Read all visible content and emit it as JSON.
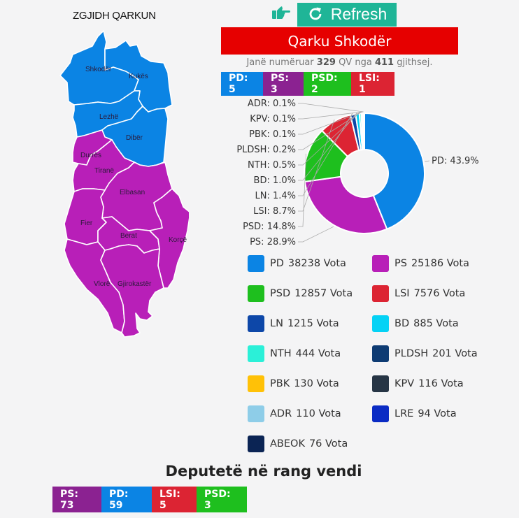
{
  "map": {
    "title": "ZGJIDH QARKUN",
    "regions": [
      {
        "name": "Shkodër",
        "winner": "PD"
      },
      {
        "name": "Kukës",
        "winner": "PD"
      },
      {
        "name": "Lezhë",
        "winner": "PD"
      },
      {
        "name": "Dibër",
        "winner": "PD"
      },
      {
        "name": "Durrës",
        "winner": "PS"
      },
      {
        "name": "Tiranë",
        "winner": "PS"
      },
      {
        "name": "Elbasan",
        "winner": "PS"
      },
      {
        "name": "Fier",
        "winner": "PS"
      },
      {
        "name": "Berat",
        "winner": "PS"
      },
      {
        "name": "Korçë",
        "winner": "PS"
      },
      {
        "name": "Vlorë",
        "winner": "PS"
      },
      {
        "name": "Gjirokastër",
        "winner": "PS"
      }
    ],
    "colors": {
      "PD": "#0b84e4",
      "PS": "#b81fb8"
    }
  },
  "toolbar": {
    "pointer_icon": "hand-pointing-right-icon",
    "refresh_icon": "refresh-icon",
    "refresh_label": "Refresh"
  },
  "region": {
    "title": "Qarku Shkodër",
    "count_prefix": "Janë numëruar",
    "counted": "329",
    "count_mid": "QV nga",
    "total": "411",
    "count_suffix": "gjithsej."
  },
  "region_seats": [
    {
      "label": "PD: 5",
      "color": "#0b84e4"
    },
    {
      "label": "PS: 3",
      "color": "#8b2291"
    },
    {
      "label": "PSD: 2",
      "color": "#1ebf1e"
    },
    {
      "label": "LSI: 1",
      "color": "#dc2433"
    }
  ],
  "chart_data": {
    "type": "pie",
    "subtype": "donut",
    "title": "Qarku Shkodër",
    "categories": [
      "PD",
      "PS",
      "PSD",
      "LSI",
      "LN",
      "BD",
      "NTH",
      "PLDSH",
      "PBK",
      "KPV",
      "ADR",
      "LRE",
      "ABEOK"
    ],
    "values": [
      38238,
      25186,
      12857,
      7576,
      1215,
      885,
      444,
      201,
      130,
      116,
      110,
      94,
      76
    ],
    "percent_labels": [
      {
        "party": "PD",
        "label": "PD: 43.9%"
      },
      {
        "party": "PS",
        "label": "PS: 28.9%"
      },
      {
        "party": "PSD",
        "label": "PSD: 14.8%"
      },
      {
        "party": "LSI",
        "label": "LSI: 8.7%"
      },
      {
        "party": "LN",
        "label": "LN: 1.4%"
      },
      {
        "party": "BD",
        "label": "BD: 1.0%"
      },
      {
        "party": "NTH",
        "label": "NTH: 0.5%"
      },
      {
        "party": "PLDSH",
        "label": "PLDSH: 0.2%"
      },
      {
        "party": "PBK",
        "label": "PBK: 0.1%"
      },
      {
        "party": "KPV",
        "label": "KPV: 0.1%"
      },
      {
        "party": "ADR",
        "label": "ADR: 0.1%"
      }
    ],
    "colors": [
      "#0b84e4",
      "#b81fb8",
      "#1ebf1e",
      "#dc2433",
      "#0d47a8",
      "#05d2f5",
      "#2bf0d8",
      "#0e3b73",
      "#ffc107",
      "#263545",
      "#8ecde8",
      "#0a2bc4",
      "#0b2454"
    ],
    "legend_position": "bottom"
  },
  "legend": [
    {
      "party": "PD",
      "votes": "38238 Vota",
      "color": "#0b84e4"
    },
    {
      "party": "PS",
      "votes": "25186 Vota",
      "color": "#b81fb8"
    },
    {
      "party": "PSD",
      "votes": "12857 Vota",
      "color": "#1ebf1e"
    },
    {
      "party": "LSI",
      "votes": "7576 Vota",
      "color": "#dc2433"
    },
    {
      "party": "LN",
      "votes": "1215 Vota",
      "color": "#0d47a8"
    },
    {
      "party": "BD",
      "votes": "885 Vota",
      "color": "#05d2f5"
    },
    {
      "party": "NTH",
      "votes": "444 Vota",
      "color": "#2bf0d8"
    },
    {
      "party": "PLDSH",
      "votes": "201 Vota",
      "color": "#0e3b73"
    },
    {
      "party": "PBK",
      "votes": "130 Vota",
      "color": "#ffc107"
    },
    {
      "party": "KPV",
      "votes": "116 Vota",
      "color": "#263545"
    },
    {
      "party": "ADR",
      "votes": "110 Vota",
      "color": "#8ecde8"
    },
    {
      "party": "LRE",
      "votes": "94 Vota",
      "color": "#0a2bc4"
    },
    {
      "party": "ABEOK",
      "votes": "76 Vota",
      "color": "#0b2454"
    }
  ],
  "national": {
    "title": "Deputetë në rang vendi",
    "seats": [
      {
        "label": "PS: 73",
        "color": "#8b2291"
      },
      {
        "label": "PD: 59",
        "color": "#0b84e4"
      },
      {
        "label": "LSI: 5",
        "color": "#dc2433"
      },
      {
        "label": "PSD: 3",
        "color": "#1ebf1e"
      }
    ]
  }
}
